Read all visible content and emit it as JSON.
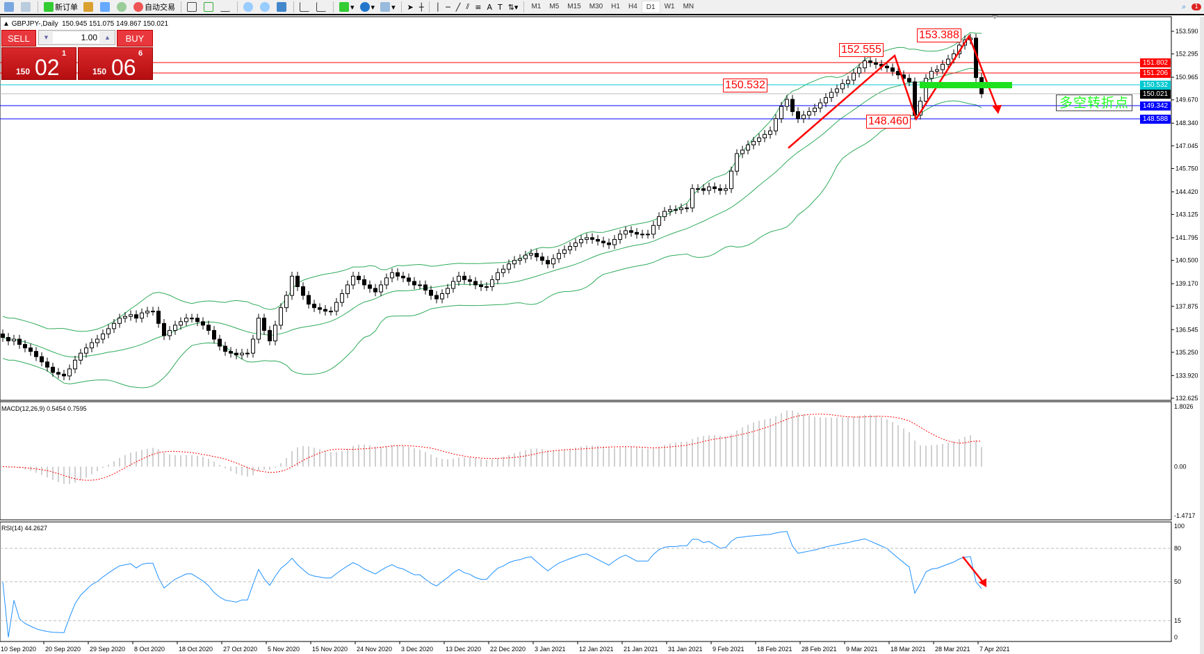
{
  "toolbar": {
    "new_order": "新订单",
    "auto_trading": "自动交易",
    "timeframes": [
      "M1",
      "M5",
      "M15",
      "M30",
      "H1",
      "H4",
      "D1",
      "W1",
      "MN"
    ],
    "selected_timeframe": "D1",
    "notification_count": "1"
  },
  "chart_header": {
    "symbol": "GBPJPY-,Daily",
    "ohlc": "150.945 151.075 149.867 150.021"
  },
  "trade_panel": {
    "sell_label": "SELL",
    "buy_label": "BUY",
    "lots": "1.00",
    "sell_price": {
      "small": "150",
      "big": "02",
      "sup": "1"
    },
    "buy_price": {
      "small": "150",
      "big": "06",
      "sup": "6"
    }
  },
  "annotations": {
    "a1": "150.532",
    "a2": "152.555",
    "a3": "153.388",
    "a4": "148.460",
    "note": "多空转折点"
  },
  "price_lines": [
    {
      "label": "151.802",
      "value": 151.802,
      "color": "#ff0000"
    },
    {
      "label": "151.206",
      "value": 151.206,
      "color": "#ff0000"
    },
    {
      "label": "150.532",
      "value": 150.532,
      "color": "#00c8d0"
    },
    {
      "label": "150.021",
      "value": 150.021,
      "color": "#000000"
    },
    {
      "label": "149.342",
      "value": 149.342,
      "color": "#0000ff"
    },
    {
      "label": "148.588",
      "value": 148.588,
      "color": "#0000ff"
    }
  ],
  "chart_data": [
    {
      "type": "candlestick",
      "title": "GBPJPY-,Daily",
      "ylim": [
        132.625,
        153.59
      ],
      "y_ticks": [
        "153.590",
        "152.295",
        "150.965",
        "149.670",
        "148.340",
        "147.045",
        "145.750",
        "144.420",
        "143.125",
        "141.795",
        "140.500",
        "139.170",
        "137.875",
        "136.545",
        "135.250",
        "133.920",
        "132.625"
      ],
      "x_tick_labels": [
        "10 Sep 2020",
        "20 Sep 2020",
        "29 Sep 2020",
        "8 Oct 2020",
        "18 Oct 2020",
        "27 Oct 2020",
        "5 Nov 2020",
        "15 Nov 2020",
        "24 Nov 2020",
        "3 Dec 2020",
        "13 Dec 2020",
        "22 Dec 2020",
        "3 Jan 2021",
        "12 Jan 2021",
        "21 Jan 2021",
        "31 Jan 2021",
        "9 Feb 2021",
        "18 Feb 2021",
        "28 Feb 2021",
        "9 Mar 2021",
        "18 Mar 2021",
        "28 Mar 2021",
        "7 Apr 2021"
      ],
      "bars_per_x_tick": 8,
      "overlay": "Bollinger Bands (20, 2)",
      "band_color": "#2eaa5a",
      "close": [
        136.1,
        135.9,
        136.0,
        135.7,
        135.5,
        135.3,
        135.0,
        134.7,
        134.4,
        134.1,
        134.0,
        133.9,
        134.3,
        134.8,
        135.2,
        135.5,
        135.8,
        136.0,
        136.3,
        136.6,
        136.9,
        137.2,
        137.3,
        137.4,
        137.2,
        137.5,
        137.6,
        137.6,
        136.9,
        136.2,
        136.5,
        136.8,
        137.0,
        137.2,
        137.2,
        137.0,
        136.8,
        136.5,
        136.0,
        135.6,
        135.3,
        135.2,
        135.1,
        135.2,
        135.2,
        136.0,
        137.2,
        136.5,
        135.9,
        136.8,
        137.8,
        138.5,
        139.6,
        139.0,
        138.5,
        138.0,
        137.8,
        137.7,
        137.6,
        137.6,
        138.1,
        138.6,
        139.1,
        139.6,
        139.4,
        139.1,
        138.9,
        138.7,
        139.1,
        139.5,
        139.8,
        139.6,
        139.5,
        139.3,
        139.1,
        139.1,
        138.8,
        138.5,
        138.3,
        138.6,
        138.9,
        139.3,
        139.6,
        139.4,
        139.3,
        139.1,
        139.0,
        139.0,
        139.4,
        139.8,
        140.0,
        140.3,
        140.5,
        140.6,
        140.8,
        140.9,
        140.7,
        140.5,
        140.3,
        140.6,
        140.9,
        141.1,
        141.3,
        141.5,
        141.7,
        141.8,
        141.7,
        141.6,
        141.5,
        141.4,
        141.7,
        142.0,
        142.2,
        142.1,
        142.0,
        142.0,
        142.0,
        142.5,
        143.0,
        143.3,
        143.4,
        143.4,
        143.5,
        143.5,
        144.6,
        144.6,
        144.5,
        144.7,
        144.6,
        144.5,
        144.6,
        145.6,
        146.6,
        146.8,
        147.1,
        147.3,
        147.5,
        147.7,
        147.9,
        148.6,
        149.3,
        149.7,
        149.0,
        148.6,
        148.8,
        149.0,
        149.2,
        149.5,
        149.8,
        150.1,
        150.3,
        150.6,
        150.8,
        151.2,
        151.5,
        151.9,
        151.8,
        151.7,
        151.6,
        151.5,
        151.3,
        151.1,
        150.9,
        150.7,
        148.8,
        149.6,
        150.9,
        151.3,
        151.4,
        151.7,
        152.0,
        152.3,
        152.8,
        153.1,
        153.2,
        150.945,
        150.021
      ]
    },
    {
      "type": "bar",
      "title": "MACD(12,26,9) 0.5454 0.7595",
      "ylim": [
        -1.4717,
        1.8026
      ],
      "y_ticks": [
        "1.8026",
        "0.00",
        "-1.4717"
      ],
      "histogram_color": "#c0c0c0",
      "signal_color": "#ff0000"
    },
    {
      "type": "line",
      "title": "RSI(14) 44.2627",
      "ylim": [
        0,
        100
      ],
      "y_ticks": [
        "100",
        "80",
        "50",
        "15",
        "0"
      ],
      "levels": [
        80,
        50,
        15
      ],
      "line_color": "#1e90ff"
    }
  ]
}
